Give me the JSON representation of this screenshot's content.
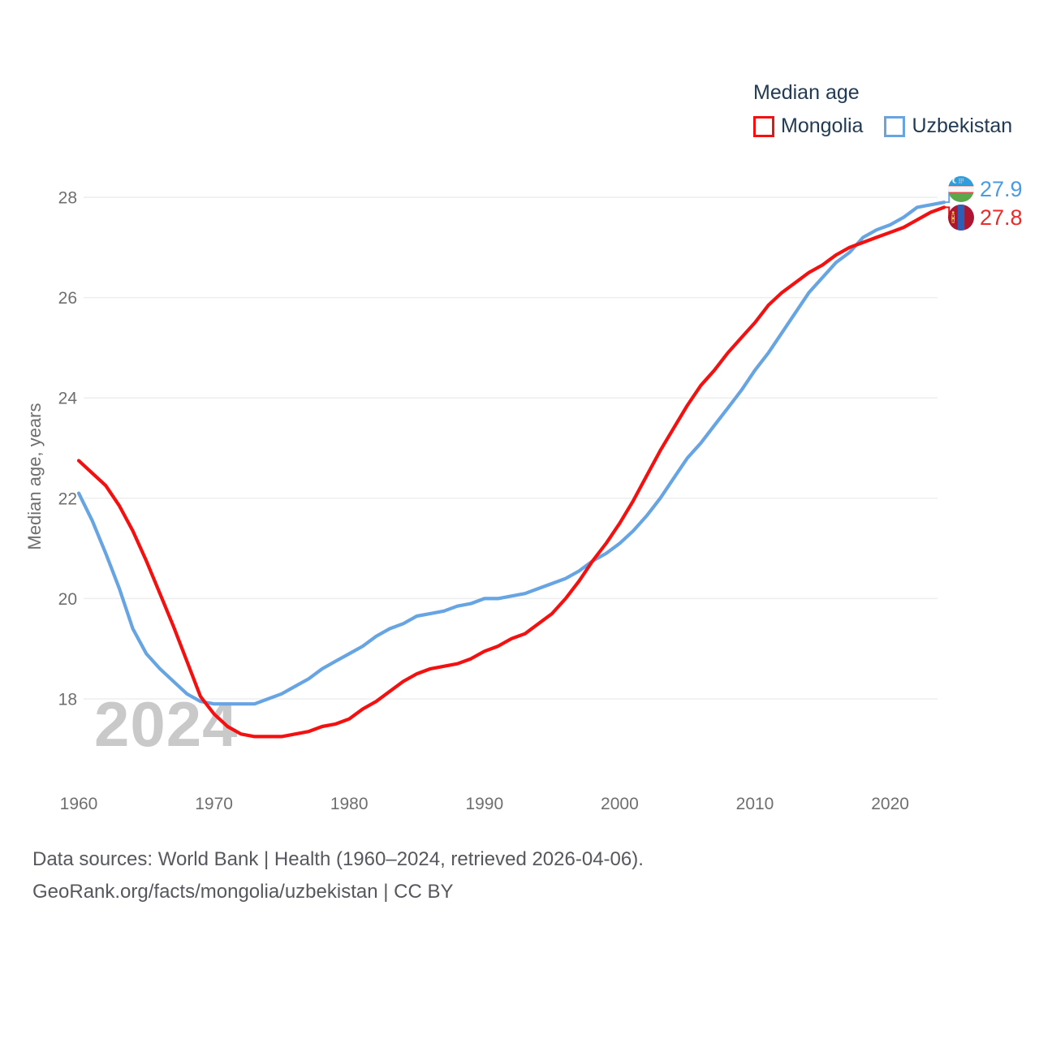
{
  "legend": {
    "title": "Median age",
    "series": [
      {
        "label": "Mongolia",
        "color": "#f5100f"
      },
      {
        "label": "Uzbekistan",
        "color": "#66a4e4"
      }
    ]
  },
  "y_axis_title": "Median age, years",
  "watermark": "2024",
  "footer": {
    "line1": "Data sources: World Bank | Health (1960–2024, retrieved 2026-04-06).",
    "line2": "GeoRank.org/facts/mongolia/uzbekistan | CC BY"
  },
  "end_labels": [
    {
      "country": "Uzbekistan",
      "value": "27.9",
      "value_color": "#4a9ae4",
      "flag": "uzbekistan-flag"
    },
    {
      "country": "Mongolia",
      "value": "27.8",
      "value_color": "#ee2a28",
      "flag": "mongolia-flag"
    }
  ],
  "colors": {
    "gridline": "#eeeeee",
    "tick_text": "#6f6f6f",
    "legend_text": "#223b54",
    "footer_text": "#55585c",
    "watermark": "#c9c9c9",
    "background": "#ffffff"
  },
  "chart_data": {
    "type": "line",
    "title": "Median age",
    "xlabel": "",
    "ylabel": "Median age, years",
    "x_start": 1960,
    "x_end": 2024,
    "x_step": 1,
    "ylim": [
      17.0,
      28.6
    ],
    "yticks": [
      18,
      20,
      22,
      24,
      26,
      28
    ],
    "xticks": [
      1960,
      1970,
      1980,
      1990,
      2000,
      2010,
      2020
    ],
    "grid": "horizontal-only",
    "legend_position": "top-right",
    "series": [
      {
        "name": "Mongolia",
        "color": "#f5100f",
        "end_value": 27.8,
        "values": [
          22.75,
          22.5,
          22.25,
          21.85,
          21.35,
          20.75,
          20.1,
          19.45,
          18.75,
          18.05,
          17.7,
          17.45,
          17.3,
          17.25,
          17.25,
          17.25,
          17.3,
          17.35,
          17.45,
          17.5,
          17.6,
          17.8,
          17.95,
          18.15,
          18.35,
          18.5,
          18.6,
          18.65,
          18.7,
          18.8,
          18.95,
          19.05,
          19.2,
          19.3,
          19.5,
          19.7,
          20.0,
          20.35,
          20.75,
          21.1,
          21.5,
          21.95,
          22.45,
          22.95,
          23.4,
          23.85,
          24.25,
          24.55,
          24.9,
          25.2,
          25.5,
          25.85,
          26.1,
          26.3,
          26.5,
          26.65,
          26.85,
          27.0,
          27.1,
          27.2,
          27.3,
          27.4,
          27.55,
          27.7,
          27.8
        ]
      },
      {
        "name": "Uzbekistan",
        "color": "#66a4e4",
        "end_value": 27.9,
        "values": [
          22.1,
          21.55,
          20.9,
          20.2,
          19.4,
          18.9,
          18.6,
          18.35,
          18.1,
          17.95,
          17.9,
          17.9,
          17.9,
          17.9,
          18.0,
          18.1,
          18.25,
          18.4,
          18.6,
          18.75,
          18.9,
          19.05,
          19.25,
          19.4,
          19.5,
          19.65,
          19.7,
          19.75,
          19.85,
          19.9,
          20.0,
          20.0,
          20.05,
          20.1,
          20.2,
          20.3,
          20.4,
          20.55,
          20.75,
          20.9,
          21.1,
          21.35,
          21.65,
          22.0,
          22.4,
          22.8,
          23.1,
          23.45,
          23.8,
          24.15,
          24.55,
          24.9,
          25.3,
          25.7,
          26.1,
          26.4,
          26.7,
          26.9,
          27.2,
          27.35,
          27.45,
          27.6,
          27.8,
          27.85,
          27.9
        ]
      }
    ]
  }
}
